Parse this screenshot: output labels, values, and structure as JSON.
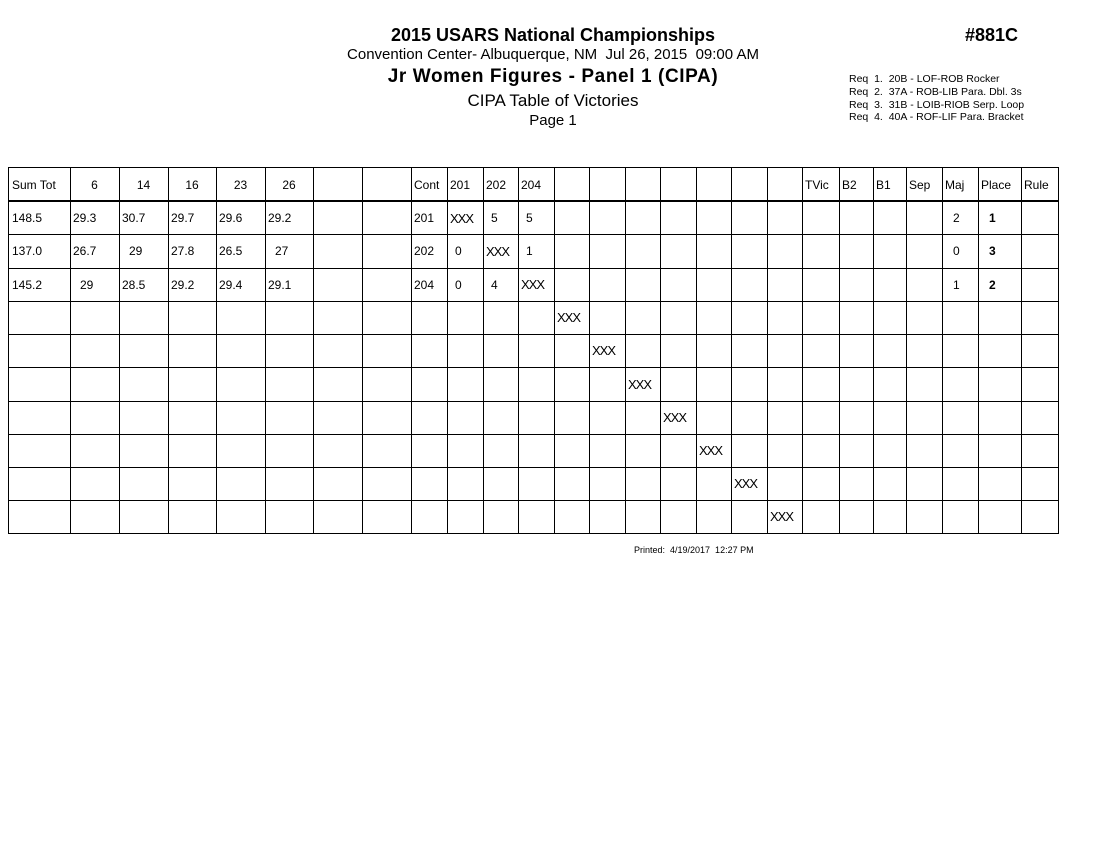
{
  "header": {
    "title": "2015 USARS National Championships",
    "venue": "Convention Center- Albuquerque, NM  Jul 26, 2015  09:00 AM",
    "event": "Jr Women Figures - Panel 1 (CIPA)",
    "report": "CIPA Table of Victories",
    "page": "Page 1",
    "code": "#881C",
    "requirements": [
      "Req  1.  20B - LOF-ROB Rocker",
      "Req  2.  37A - ROB-LIB Para. Dbl. 3s",
      "Req  3.  31B - LOIB-RIOB Serp. Loop",
      "Req  4.  40A - ROF-LIF Para. Bracket"
    ]
  },
  "table": {
    "columns": [
      "Sum Tot",
      "6",
      "14",
      "16",
      "23",
      "26",
      null,
      null,
      "Cont",
      "201",
      "202",
      "204",
      null,
      null,
      null,
      null,
      null,
      null,
      null,
      "TVic",
      "B2",
      "B1",
      "Sep",
      "Maj",
      "Place",
      "Rule"
    ],
    "rows": [
      [
        "148.5",
        "29.3",
        "30.7",
        "29.7",
        "29.6",
        "29.2",
        null,
        null,
        "201",
        "XXX",
        "5",
        "5",
        null,
        null,
        null,
        null,
        null,
        null,
        null,
        null,
        null,
        null,
        null,
        "2",
        "1",
        null
      ],
      [
        "137.0",
        "26.7",
        "29",
        "27.8",
        "26.5",
        "27",
        null,
        null,
        "202",
        "0",
        "XXX",
        "1",
        null,
        null,
        null,
        null,
        null,
        null,
        null,
        null,
        null,
        null,
        null,
        "0",
        "3",
        null
      ],
      [
        "145.2",
        "29",
        "28.5",
        "29.2",
        "29.4",
        "29.1",
        null,
        null,
        "204",
        "0",
        "4",
        "XXX",
        null,
        null,
        null,
        null,
        null,
        null,
        null,
        null,
        null,
        null,
        null,
        "1",
        "2",
        null
      ],
      [
        null,
        null,
        null,
        null,
        null,
        null,
        null,
        null,
        null,
        null,
        null,
        null,
        "XXX",
        null,
        null,
        null,
        null,
        null,
        null,
        null,
        null,
        null,
        null,
        null,
        null,
        null
      ],
      [
        null,
        null,
        null,
        null,
        null,
        null,
        null,
        null,
        null,
        null,
        null,
        null,
        null,
        "XXX",
        null,
        null,
        null,
        null,
        null,
        null,
        null,
        null,
        null,
        null,
        null,
        null
      ],
      [
        null,
        null,
        null,
        null,
        null,
        null,
        null,
        null,
        null,
        null,
        null,
        null,
        null,
        null,
        "XXX",
        null,
        null,
        null,
        null,
        null,
        null,
        null,
        null,
        null,
        null,
        null
      ],
      [
        null,
        null,
        null,
        null,
        null,
        null,
        null,
        null,
        null,
        null,
        null,
        null,
        null,
        null,
        null,
        "XXX",
        null,
        null,
        null,
        null,
        null,
        null,
        null,
        null,
        null,
        null
      ],
      [
        null,
        null,
        null,
        null,
        null,
        null,
        null,
        null,
        null,
        null,
        null,
        null,
        null,
        null,
        null,
        null,
        "XXX",
        null,
        null,
        null,
        null,
        null,
        null,
        null,
        null,
        null
      ],
      [
        null,
        null,
        null,
        null,
        null,
        null,
        null,
        null,
        null,
        null,
        null,
        null,
        null,
        null,
        null,
        null,
        null,
        "XXX",
        null,
        null,
        null,
        null,
        null,
        null,
        null,
        null
      ],
      [
        null,
        null,
        null,
        null,
        null,
        null,
        null,
        null,
        null,
        null,
        null,
        null,
        null,
        null,
        null,
        null,
        null,
        null,
        "XXX",
        null,
        null,
        null,
        null,
        null,
        null,
        null
      ]
    ]
  },
  "footer": {
    "printed": "Printed:  4/19/2017  12:27 PM"
  }
}
